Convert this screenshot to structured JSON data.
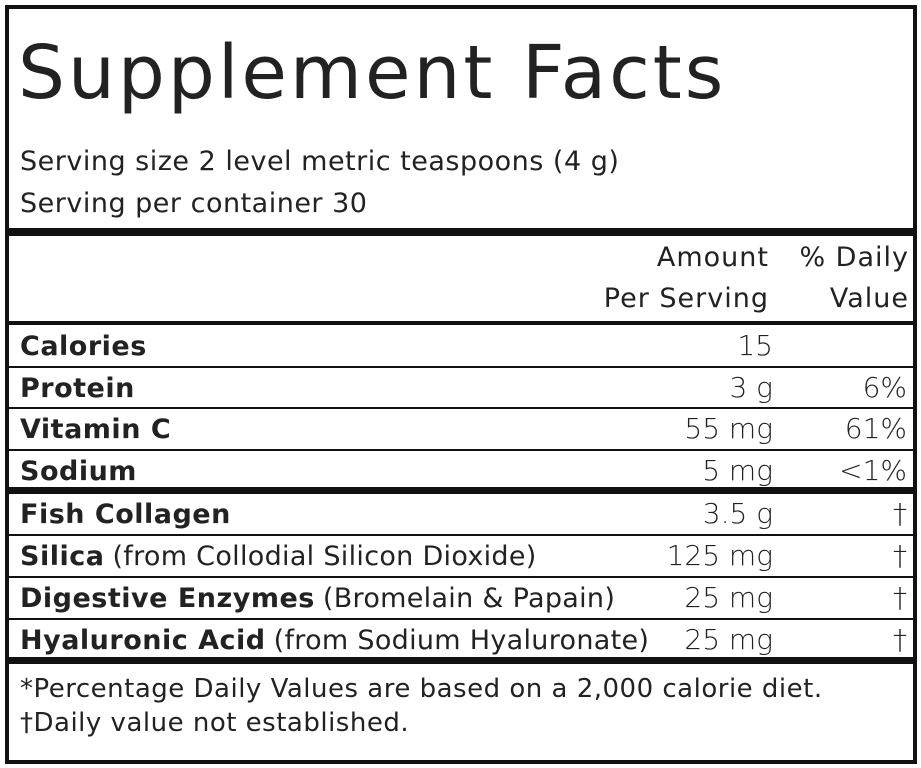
{
  "title": "Supplement Facts",
  "serving_size": "Serving size 2 level metric teaspoons (4 g)",
  "servings_per_container": "Serving per container 30",
  "columns": {
    "amount": [
      "Amount",
      "Per Serving"
    ],
    "daily_value": [
      "% Daily",
      "Value"
    ]
  },
  "nutrients": [
    {
      "name": "Calories",
      "amount": "15"
    },
    {
      "name": "Protein",
      "amount": "3 g",
      "daily_value": "6%"
    },
    {
      "name": "Vitamin C",
      "amount": "55 mg",
      "daily_value": "61%"
    },
    {
      "name": "Sodium",
      "amount": "5 mg",
      "daily_value": "<1%"
    }
  ],
  "ingredients": [
    {
      "name": "Fish Collagen",
      "amount": "3.5 g",
      "daily_value": "†"
    },
    {
      "name": "Silica",
      "note": "(from Collodial Silicon Dioxide)",
      "amount": "125 mg",
      "daily_value": "†"
    },
    {
      "name": "Digestive Enzymes",
      "note": "(Bromelain & Papain)",
      "amount": "25 mg",
      "daily_value": "†"
    },
    {
      "name": "Hyaluronic Acid",
      "note": "(from Sodium Hyaluronate)",
      "amount": "25 mg",
      "daily_value": "†"
    }
  ],
  "footnotes": [
    "*Percentage Daily Values are based on a 2,000 calorie diet.",
    "†Daily value not established."
  ]
}
